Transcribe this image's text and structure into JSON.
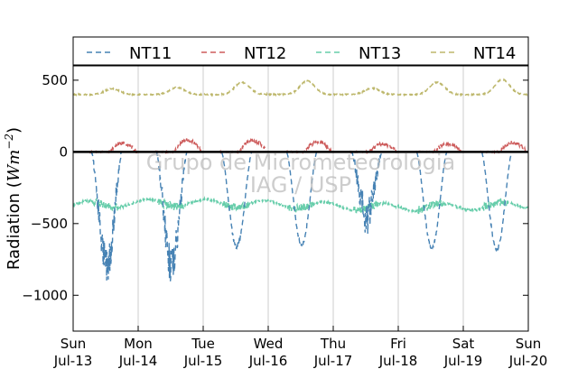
{
  "chart_data": {
    "type": "line",
    "ylabel": "Radiation (Wm⁻²)",
    "ylabel_parts": {
      "main": "Radiation (",
      "unit": "Wm",
      "exp": "−2",
      "close": ")"
    },
    "ylim": [
      -1250,
      600
    ],
    "xlim": [
      0,
      7
    ],
    "yticks": [
      500,
      0,
      -500,
      -1000
    ],
    "ytick_labels": [
      "500",
      "0",
      "−500",
      "−1000"
    ],
    "xticks": [
      0,
      1,
      2,
      3,
      4,
      5,
      6,
      7
    ],
    "xtick_labels": [
      [
        "Sun",
        "Jul-13"
      ],
      [
        "Mon",
        "Jul-14"
      ],
      [
        "Tue",
        "Jul-15"
      ],
      [
        "Wed",
        "Jul-16"
      ],
      [
        "Thu",
        "Jul-17"
      ],
      [
        "Fri",
        "Jul-18"
      ],
      [
        "Sat",
        "Jul-19"
      ],
      [
        "Sun",
        "Jul-20"
      ]
    ],
    "grid": "vertical",
    "zero_line": true,
    "legend_position": "top",
    "watermark": [
      "Grupo de Micrometeorologia",
      "IAG / USP"
    ],
    "series": [
      {
        "name": "NT11",
        "color": "#4682b4",
        "style": "dashed"
      },
      {
        "name": "NT12",
        "color": "#cd5c5c",
        "style": "dashed"
      },
      {
        "name": "NT13",
        "color": "#66cdaa",
        "style": "dashed"
      },
      {
        "name": "NT14",
        "color": "#bdb76b",
        "style": "dashed"
      }
    ]
  }
}
